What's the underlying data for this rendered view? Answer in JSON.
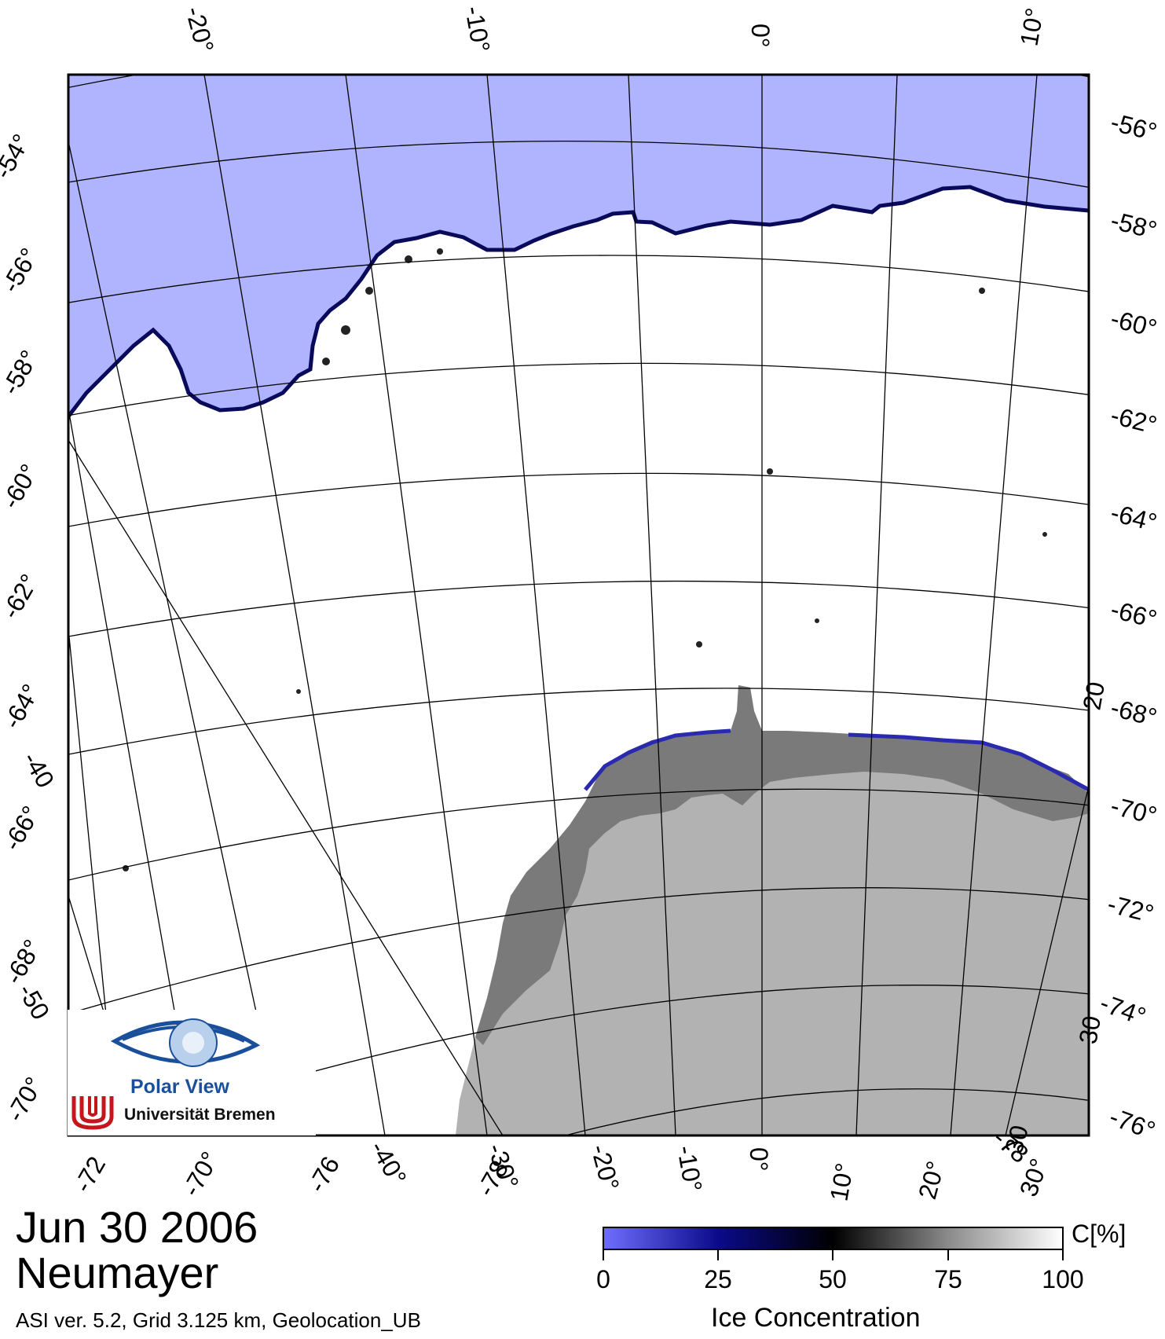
{
  "map": {
    "date": "Jun 30 2006",
    "station": "Neumayer",
    "credit": "ASI ver. 5.2,  Grid 3.125 km, Geolocation_UB",
    "legend": {
      "title": "Ice Concentration",
      "unit": "C[%]",
      "ticks": [
        "0",
        "25",
        "50",
        "75",
        "100"
      ]
    },
    "top_labels": [
      "-20°",
      "-10°",
      "0°",
      "10°"
    ],
    "right_labels": [
      "-56°",
      "-58°",
      "-60°",
      "-62°",
      "-64°",
      "-66°",
      "-68°",
      "-70°",
      "-72°",
      "-74°",
      "-76°"
    ],
    "left_labels": [
      "-54°",
      "-56°",
      "-58°",
      "-60°",
      "-62°",
      "-64°",
      "-66°",
      "-68°",
      "-70°"
    ],
    "bottom_labels": [
      "-72",
      "-70°",
      "-76",
      "-40°",
      "-30°",
      "-78",
      "-20°",
      "-10°",
      "0°",
      "10°",
      "20°",
      "30°",
      "-78"
    ],
    "extra_labels": [
      "30",
      "-50",
      "-40",
      "20",
      "30"
    ],
    "logo": {
      "title": "Polar View",
      "subtitle": "Universität Bremen"
    },
    "colors": {
      "open_water": "#b0b4ff",
      "sea_ice": "#ffffff",
      "land": "#b2b2b2",
      "ice_shelf": "#7a7a7a",
      "colorbar_low": "#6f6fff",
      "colorbar_mid": "#000000",
      "colorbar_high": "#ffffff"
    }
  }
}
